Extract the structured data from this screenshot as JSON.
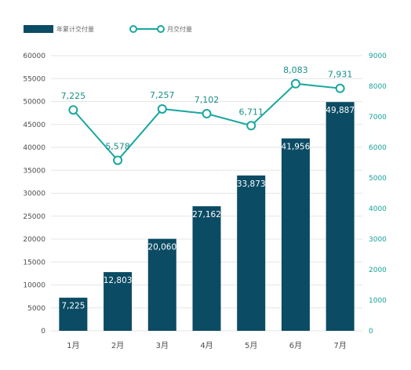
{
  "colors": {
    "bar": "#0b4b64",
    "line": "#19a89e",
    "grid": "#e6e6e6",
    "axis_text_left": "#4d4d4d",
    "axis_text_right": "#17a39a"
  },
  "legend": {
    "bar_label": "年累计交付量",
    "line_label": "月交付量"
  },
  "chart_data": {
    "type": "bar",
    "categories": [
      "1月",
      "2月",
      "3月",
      "4月",
      "5月",
      "6月",
      "7月"
    ],
    "series": [
      {
        "name": "年累计交付量",
        "type": "bar",
        "axis": "left",
        "values": [
          7225,
          12803,
          20060,
          27162,
          33873,
          41956,
          49887
        ],
        "labels": [
          "7,225",
          "12,803",
          "20,060",
          "27,162",
          "33,873",
          "41,956",
          "49,887"
        ]
      },
      {
        "name": "月交付量",
        "type": "line",
        "axis": "right",
        "values": [
          7225,
          5578,
          7257,
          7102,
          6711,
          8083,
          7931
        ],
        "labels": [
          "7,225",
          "5,578",
          "7,257",
          "7,102",
          "6,711",
          "8,083",
          "7,931"
        ]
      }
    ],
    "y_left": {
      "min": 0,
      "max": 60000,
      "ticks": [
        "0",
        "5000",
        "10000",
        "15000",
        "20000",
        "25000",
        "30000",
        "35000",
        "40000",
        "45000",
        "50000",
        "55000",
        "60000"
      ]
    },
    "y_right": {
      "min": 0,
      "max": 9000,
      "ticks": [
        "0",
        "1000",
        "2000",
        "3000",
        "4000",
        "5000",
        "6000",
        "7000",
        "8000",
        "9000"
      ]
    },
    "grid": true,
    "legend_position": "top-left"
  }
}
